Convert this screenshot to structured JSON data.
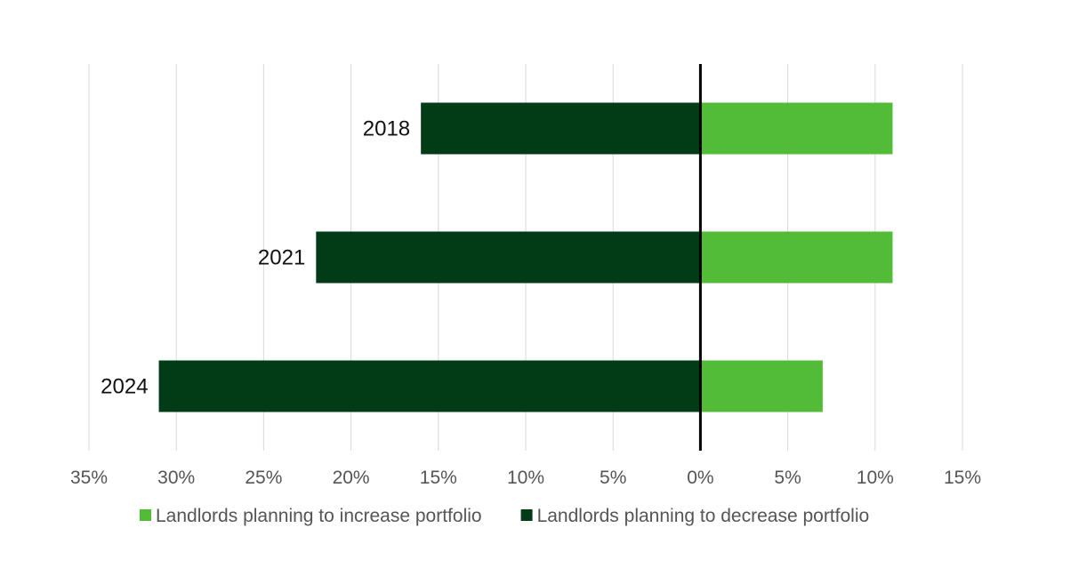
{
  "chart_data": {
    "type": "bar",
    "orientation": "horizontal-diverging",
    "categories": [
      "2018",
      "2021",
      "2024"
    ],
    "series": [
      {
        "name": "Landlords planning to increase portfolio",
        "color": "#52bb38",
        "values": [
          11,
          11,
          7
        ]
      },
      {
        "name": "Landlords planning to decrease portfolio",
        "color": "#023c17",
        "values": [
          -16,
          -22,
          -31
        ]
      }
    ],
    "xlim": [
      -35,
      15
    ],
    "xticks": [
      -35,
      -30,
      -25,
      -20,
      -15,
      -10,
      -5,
      0,
      5,
      10,
      15
    ],
    "xtick_labels": [
      "35%",
      "30%",
      "25%",
      "20%",
      "15%",
      "10%",
      "5%",
      "0%",
      "5%",
      "10%",
      "15%"
    ],
    "grid": "vertical",
    "legend_position": "bottom",
    "title": "",
    "xlabel": "",
    "ylabel": ""
  }
}
